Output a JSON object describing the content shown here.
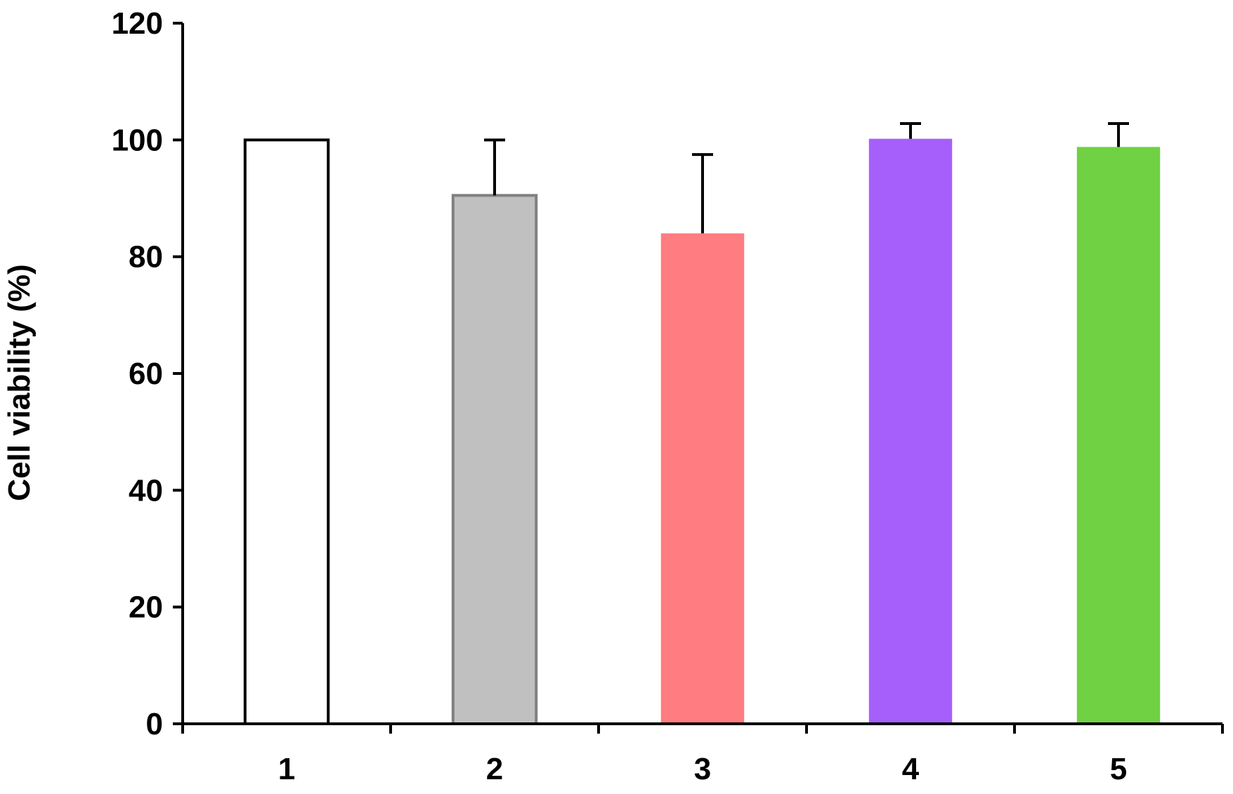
{
  "chart_data": {
    "type": "bar",
    "title": "",
    "xlabel": "",
    "ylabel": "Cell viability (%)",
    "categories": [
      "1",
      "2",
      "3",
      "4",
      "5"
    ],
    "values": [
      100,
      90.5,
      84,
      100.2,
      98.8
    ],
    "errors": [
      0,
      9.5,
      13.5,
      2.6,
      4.0
    ],
    "ylim": [
      0,
      120
    ],
    "yticks": [
      0,
      20,
      40,
      60,
      80,
      100,
      120
    ],
    "grid": false,
    "legend": "none",
    "bar_colors": [
      "#ffffff",
      "#c0c0c0",
      "#ff7c80",
      "#a65ffb",
      "#70d143"
    ],
    "bar_outlines": [
      "#000000",
      "#808080",
      "#ff7c80",
      "#a65ffb",
      "#70d143"
    ]
  }
}
